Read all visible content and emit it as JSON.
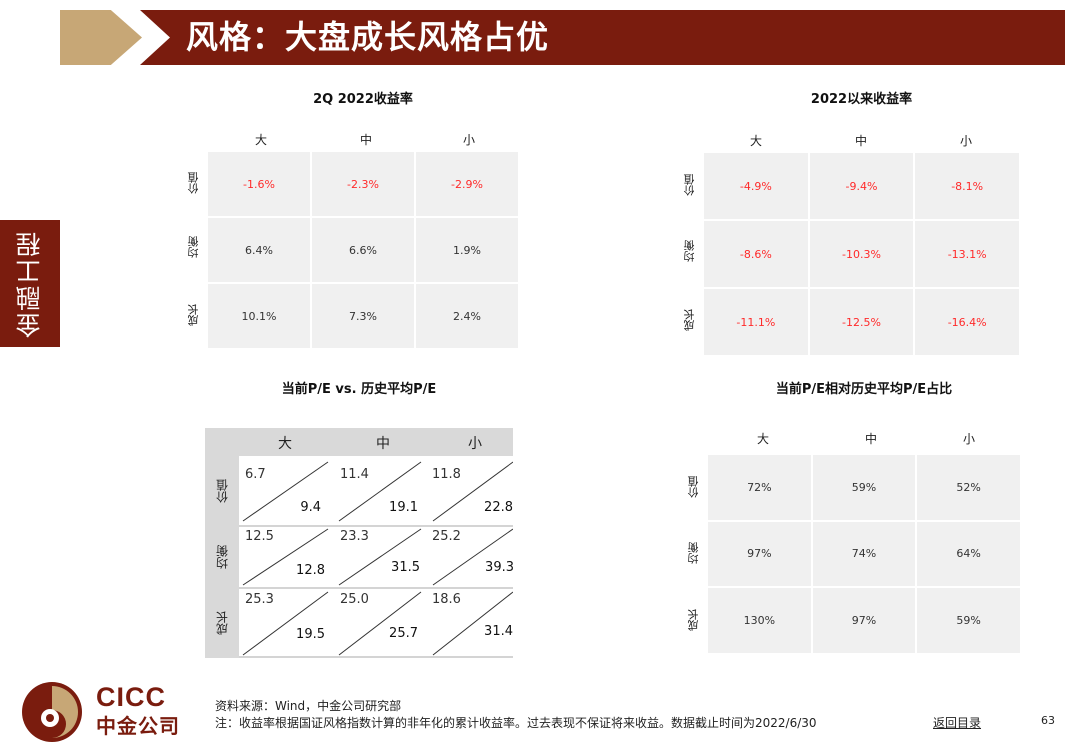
{
  "header": {
    "title": "风格：大盘成长风格占优"
  },
  "side_tab": {
    "label": "金融工程"
  },
  "columns": [
    "大",
    "中",
    "小"
  ],
  "rows": [
    "价值",
    "均衡",
    "成长"
  ],
  "panel_q2": {
    "title": "2Q 2022收益率",
    "values": [
      [
        "-1.6%",
        "-2.3%",
        "-2.9%"
      ],
      [
        "6.4%",
        "6.6%",
        "1.9%"
      ],
      [
        "10.1%",
        "7.3%",
        "2.4%"
      ]
    ]
  },
  "panel_ytd": {
    "title": "2022以来收益率",
    "values": [
      [
        "-4.9%",
        "-9.4%",
        "-8.1%"
      ],
      [
        "-8.6%",
        "-10.3%",
        "-13.1%"
      ],
      [
        "-11.1%",
        "-12.5%",
        "-16.4%"
      ]
    ]
  },
  "panel_pe": {
    "title": "当前P/E vs. 历史平均P/E",
    "current": [
      [
        "6.7",
        "11.4",
        "11.8"
      ],
      [
        "12.5",
        "23.3",
        "25.2"
      ],
      [
        "25.3",
        "25.0",
        "18.6"
      ]
    ],
    "average": [
      [
        "9.4",
        "19.1",
        "22.8"
      ],
      [
        "12.8",
        "31.5",
        "39.3"
      ],
      [
        "19.5",
        "25.7",
        "31.4"
      ]
    ]
  },
  "panel_ratio": {
    "title": "当前P/E相对历史平均P/E占比",
    "values": [
      [
        "72%",
        "59%",
        "52%"
      ],
      [
        "97%",
        "74%",
        "64%"
      ],
      [
        "130%",
        "97%",
        "59%"
      ]
    ]
  },
  "colors": {
    "brand_red": "#7a1c0e",
    "brand_gold": "#c7a776",
    "negative": "#ff2a2a"
  },
  "footer": {
    "logo_en": "CICC",
    "logo_cn": "中金公司",
    "source": "资料来源：Wind，中金公司研究部",
    "note": "注：收益率根据国证风格指数计算的非年化的累计收益率。过去表现不保证将来收益。数据截止时间为2022/6/30",
    "back_link": "返回目录",
    "page_number": "63"
  }
}
